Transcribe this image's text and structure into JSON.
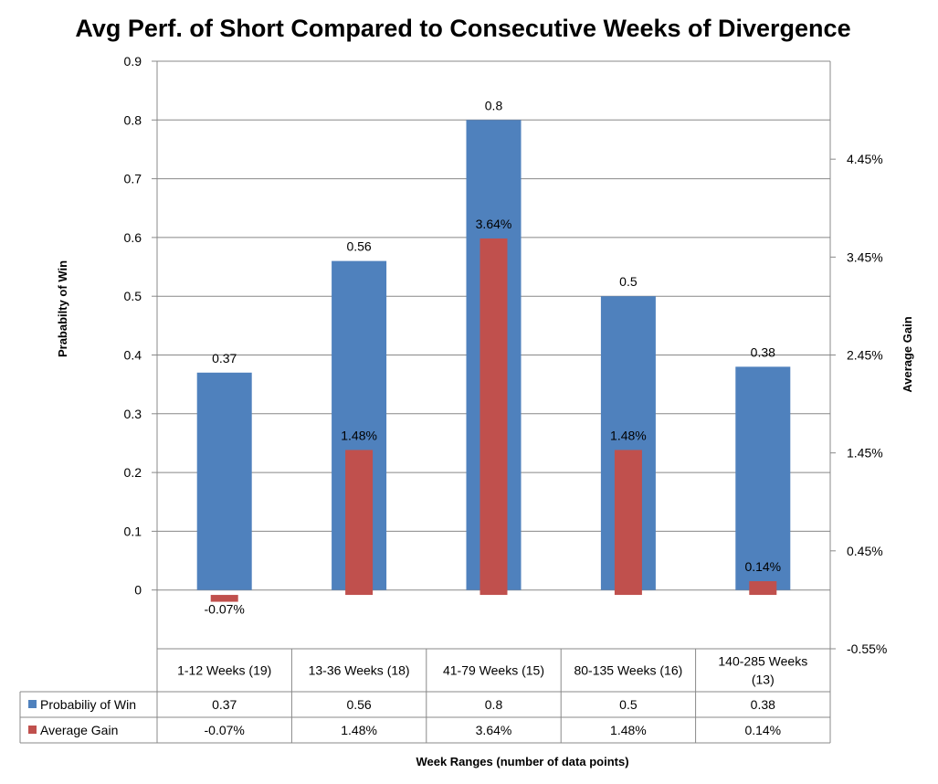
{
  "chart_data": {
    "type": "bar",
    "title": "Avg Perf. of Short Compared to Consecutive Weeks of Divergence",
    "xlabel": "Week Ranges (number of data points)",
    "ylabel": "Prababilty  of Win",
    "y2label": "Average Gain",
    "categories": [
      "1-12 Weeks (19)",
      "13-36 Weeks (18)",
      "41-79 Weeks (15)",
      "80-135 Weeks (16)",
      "140-285 Weeks (13)"
    ],
    "ylim": [
      -0.1,
      0.9
    ],
    "yticks": [
      "0.9",
      "0.8",
      "0.7",
      "0.6",
      "0.5",
      "0.4",
      "0.3",
      "0.2",
      "0.1",
      "0"
    ],
    "y2lim": [
      -0.55,
      5.45
    ],
    "y2ticks": [
      "4.45%",
      "3.45%",
      "2.45%",
      "1.45%",
      "0.45%",
      "-0.55%"
    ],
    "grid": true,
    "data_table": true,
    "series": [
      {
        "name": "Probabiliy of Win",
        "axis": "left",
        "color": "#4F81BD",
        "values": [
          0.37,
          0.56,
          0.8,
          0.5,
          0.38
        ],
        "labels": [
          "0.37",
          "0.56",
          "0.8",
          "0.5",
          "0.38"
        ]
      },
      {
        "name": "Average Gain",
        "axis": "right",
        "color": "#C0504D",
        "values": [
          -0.07,
          1.48,
          3.64,
          1.48,
          0.14
        ],
        "labels": [
          "-0.07%",
          "1.48%",
          "3.64%",
          "1.48%",
          "0.14%"
        ]
      }
    ]
  }
}
